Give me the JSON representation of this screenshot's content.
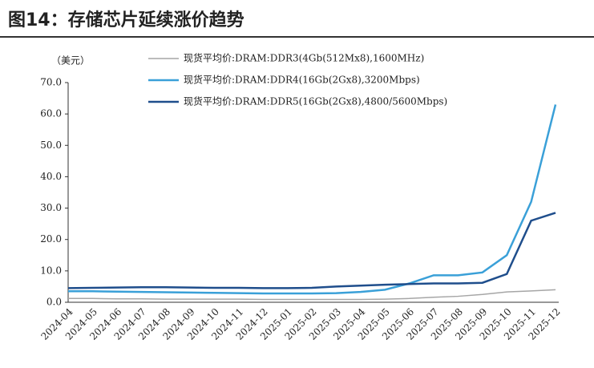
{
  "chart_data": {
    "type": "line",
    "title": "图14：存储芯片延续涨价趋势",
    "y_label": "（美元）",
    "categories": [
      "2024-04",
      "2024-05",
      "2024-06",
      "2024-07",
      "2024-08",
      "2024-09",
      "2024-10",
      "2024-11",
      "2024-12",
      "2025-01",
      "2025-02",
      "2025-03",
      "2025-04",
      "2025-05",
      "2025-06",
      "2025-07",
      "2025-08",
      "2025-09",
      "2025-10",
      "2025-11",
      "2025-12"
    ],
    "series": [
      {
        "name": "现货平均价:DRAM:DDR3(4Gb(512Mx8),1600MHz)",
        "color": "#a6a6a6",
        "values": [
          1.2,
          1.2,
          1.1,
          1.1,
          1.0,
          1.0,
          1.0,
          1.0,
          0.9,
          0.9,
          0.9,
          0.9,
          0.9,
          1.0,
          1.2,
          1.6,
          1.9,
          2.5,
          3.3,
          3.6,
          4.0
        ]
      },
      {
        "name": "现货平均价:DRAM:DDR4(16Gb(2Gx8),3200Mbps)",
        "color": "#3aa0d8",
        "values": [
          3.5,
          3.5,
          3.4,
          3.3,
          3.2,
          3.1,
          3.0,
          2.9,
          2.8,
          2.8,
          2.8,
          2.9,
          3.3,
          4.0,
          6.0,
          8.6,
          8.6,
          9.5,
          15,
          32,
          63
        ]
      },
      {
        "name": "现货平均价:DRAM:DDR5(16Gb(2Gx8),4800/5600Mbps)",
        "color": "#1f4e8c",
        "values": [
          4.5,
          4.6,
          4.7,
          4.8,
          4.8,
          4.7,
          4.6,
          4.6,
          4.5,
          4.5,
          4.6,
          5.0,
          5.3,
          5.6,
          5.8,
          6.0,
          6.0,
          6.2,
          9.0,
          26,
          28.5
        ]
      }
    ],
    "ylim": [
      0,
      70
    ],
    "yticks": [
      {
        "value": 0,
        "label": "0.0"
      },
      {
        "value": 10,
        "label": "10.0"
      },
      {
        "value": 20,
        "label": "20.0"
      },
      {
        "value": 30,
        "label": "30.0"
      },
      {
        "value": 40,
        "label": "40.0"
      },
      {
        "value": 50,
        "label": "50.0"
      },
      {
        "value": 60,
        "label": "60.0"
      },
      {
        "value": 70,
        "label": "70.0"
      }
    ]
  }
}
